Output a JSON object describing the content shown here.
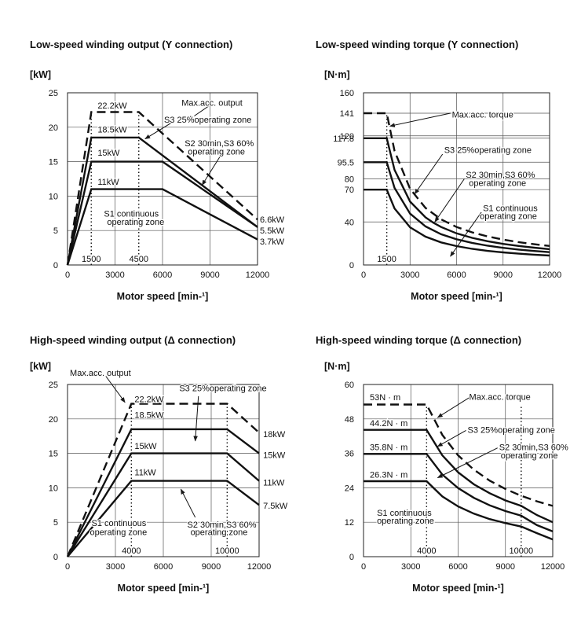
{
  "chart_data": [
    {
      "type": "line",
      "title": "Low-speed winding output (Y connection)",
      "unit_label": "[kW]",
      "xlabel": "Motor speed [min-¹]",
      "xlim": [
        0,
        12000
      ],
      "ylim": [
        0,
        25
      ],
      "x_ticks": [
        "0",
        "3000",
        "6000",
        "9000",
        "12000"
      ],
      "y_ticks": [
        "0",
        "5",
        "10",
        "15",
        "20",
        "25"
      ],
      "grid": true,
      "series": [
        {
          "style": "dashed",
          "x": [
            0,
            1500,
            4500,
            12000
          ],
          "y": [
            0,
            22.2,
            22.2,
            6.6
          ]
        },
        {
          "style": "solid",
          "x": [
            0,
            1500,
            4500,
            12000
          ],
          "y": [
            0,
            18.5,
            18.5,
            5.5
          ]
        },
        {
          "style": "solid",
          "x": [
            0,
            1500,
            6000,
            12000
          ],
          "y": [
            0,
            15,
            15,
            5.5
          ]
        },
        {
          "style": "solid",
          "x": [
            0,
            1500,
            6000,
            12000
          ],
          "y": [
            0,
            11,
            11,
            3.7
          ]
        }
      ],
      "guides": [
        {
          "x": 1500,
          "label": "1500"
        },
        {
          "x": 4500,
          "label": "4500"
        }
      ],
      "annotations": [
        {
          "text": "22.2kW",
          "x": 1900,
          "y": 23.2
        },
        {
          "text": "18.5kW",
          "x": 1900,
          "y": 19.7
        },
        {
          "text": "15kW",
          "x": 1900,
          "y": 16.3
        },
        {
          "text": "11kW",
          "x": 1900,
          "y": 12.1
        },
        {
          "text": "Max.acc. output",
          "x": 7200,
          "y": 23.6
        },
        {
          "text": "S3 25%operating zone",
          "x": 6100,
          "y": 21.1
        },
        {
          "text": "S2 30min,S3 60%",
          "x": 7400,
          "y": 17.7
        },
        {
          "text": "operating zone",
          "x": 7600,
          "y": 16.5
        },
        {
          "text": "S1 continuous",
          "x": 2300,
          "y": 7.5
        },
        {
          "text": "operating zone",
          "x": 2500,
          "y": 6.3
        },
        {
          "text": "6.6kW",
          "x": 12150,
          "y": 6.6
        },
        {
          "text": "5.5kW",
          "x": 12150,
          "y": 5.0
        },
        {
          "text": "3.7kW",
          "x": 12150,
          "y": 3.4
        }
      ],
      "arrows": [
        {
          "from": [
            9000,
            23.2
          ],
          "to": [
            7600,
            21
          ]
        },
        {
          "from": [
            9700,
            16.0
          ],
          "to": [
            8500,
            11.6
          ]
        },
        {
          "from": [
            6600,
            20.7
          ],
          "to": [
            4900,
            18.3
          ]
        }
      ]
    },
    {
      "type": "line",
      "title": "Low-speed winding torque (Y connection)",
      "unit_label": "[N·m]",
      "xlabel": "Motor speed [min-¹]",
      "xlim": [
        0,
        12000
      ],
      "ylim": [
        0,
        160
      ],
      "x_ticks": [
        "0",
        "3000",
        "6000",
        "9000",
        "12000"
      ],
      "y_ticks": [
        "0",
        "40",
        "70",
        "80",
        "95.5",
        "117.8",
        "120",
        "141",
        "160"
      ],
      "grid": true,
      "series": [
        {
          "style": "dashed",
          "x": [
            0,
            1500,
            2000,
            3000,
            4000,
            5000,
            6000,
            7000,
            8000,
            9000,
            10000,
            11000,
            12000
          ],
          "y": [
            141,
            141,
            106,
            70.7,
            53,
            42.4,
            35.3,
            30.3,
            26.5,
            23.6,
            21.2,
            19.3,
            17.7
          ]
        },
        {
          "style": "solid",
          "x": [
            0,
            1500,
            2000,
            3000,
            4000,
            4500,
            5000,
            6000,
            7000,
            8000,
            9000,
            10000,
            11000,
            12000
          ],
          "y": [
            117.8,
            117.8,
            88.4,
            58.9,
            44.2,
            39.3,
            35.3,
            29.4,
            25.2,
            22.1,
            19.6,
            17.7,
            16.1,
            14.7
          ]
        },
        {
          "style": "solid",
          "x": [
            0,
            1500,
            2000,
            3000,
            4000,
            5000,
            6000,
            7000,
            8000,
            9000,
            10000,
            11000,
            12000
          ],
          "y": [
            95.5,
            95.5,
            71.6,
            47.7,
            35.8,
            28.6,
            23.9,
            20.5,
            17.9,
            15.9,
            14.3,
            13.0,
            11.9
          ]
        },
        {
          "style": "solid",
          "x": [
            0,
            1500,
            2000,
            3000,
            4000,
            5000,
            6000,
            7000,
            8000,
            9000,
            10000,
            11000,
            12000
          ],
          "y": [
            70,
            70,
            52.5,
            35,
            26.3,
            21.0,
            17.5,
            15.0,
            13.1,
            11.7,
            10.5,
            9.6,
            8.8
          ]
        }
      ],
      "guides": [
        {
          "x": 1500,
          "label": "1500"
        }
      ],
      "annotations": [
        {
          "text": "Max.acc. torque",
          "x": 5700,
          "y": 140
        },
        {
          "text": "S3 25%operating zone",
          "x": 5200,
          "y": 107
        },
        {
          "text": "S2 30min,S3 60%",
          "x": 6600,
          "y": 84
        },
        {
          "text": "operating zone",
          "x": 6800,
          "y": 76.5
        },
        {
          "text": "S1 continuous",
          "x": 7700,
          "y": 53
        },
        {
          "text": "operating zone",
          "x": 7500,
          "y": 45.5
        }
      ],
      "arrows": [
        {
          "from": [
            5600,
            141
          ],
          "to": [
            1700,
            129
          ]
        },
        {
          "from": [
            5100,
            103
          ],
          "to": [
            3300,
            66
          ]
        },
        {
          "from": [
            6500,
            80
          ],
          "to": [
            4600,
            40
          ]
        },
        {
          "from": [
            7600,
            49
          ],
          "to": [
            5600,
            8
          ]
        }
      ]
    },
    {
      "type": "line",
      "title": "High-speed winding output (Δ connection)",
      "unit_label": "[kW]",
      "xlabel": "Motor speed [min-¹]",
      "xlim": [
        0,
        12000
      ],
      "ylim": [
        0,
        25
      ],
      "x_ticks": [
        "0",
        "3000",
        "6000",
        "9000",
        "12000"
      ],
      "y_ticks": [
        "0",
        "5",
        "10",
        "15",
        "20",
        "25"
      ],
      "grid": true,
      "series": [
        {
          "style": "dashed",
          "x": [
            0,
            4000,
            10000,
            12000
          ],
          "y": [
            0,
            22.2,
            22.2,
            18
          ]
        },
        {
          "style": "solid",
          "x": [
            0,
            4000,
            10000,
            12000
          ],
          "y": [
            0,
            18.5,
            18.5,
            15
          ]
        },
        {
          "style": "solid",
          "x": [
            0,
            4000,
            10000,
            12000
          ],
          "y": [
            0,
            15,
            15,
            11
          ]
        },
        {
          "style": "solid",
          "x": [
            0,
            4000,
            10000,
            12000
          ],
          "y": [
            0,
            11,
            11,
            7.5
          ]
        }
      ],
      "guides": [
        {
          "x": 4000,
          "label": "4000"
        },
        {
          "x": 10000,
          "label": "10000"
        }
      ],
      "annotations": [
        {
          "text": "22.2kW",
          "x": 4200,
          "y": 22.9
        },
        {
          "text": "18.5kW",
          "x": 4200,
          "y": 20.6
        },
        {
          "text": "15kW",
          "x": 4200,
          "y": 16.1
        },
        {
          "text": "11kW",
          "x": 4200,
          "y": 12.3
        },
        {
          "text": "Max.acc. output",
          "x": 150,
          "y": 26.7
        },
        {
          "text": "S3 25%operating zone",
          "x": 7000,
          "y": 24.5
        },
        {
          "text": "S2 30min,S3 60%",
          "x": 7500,
          "y": 4.7
        },
        {
          "text": "operating zone",
          "x": 7700,
          "y": 3.6
        },
        {
          "text": "S1 continuous",
          "x": 1500,
          "y": 4.9
        },
        {
          "text": "operating zone",
          "x": 1400,
          "y": 3.6
        },
        {
          "text": "18kW",
          "x": 12250,
          "y": 17.8
        },
        {
          "text": "15kW",
          "x": 12250,
          "y": 14.8
        },
        {
          "text": "11kW",
          "x": 12250,
          "y": 10.8
        },
        {
          "text": "7.5kW",
          "x": 12250,
          "y": 7.4
        }
      ],
      "arrows": [
        {
          "from": [
            2400,
            26.2
          ],
          "to": [
            3600,
            22.4
          ]
        },
        {
          "from": [
            8200,
            23.3
          ],
          "to": [
            8000,
            16.8
          ]
        },
        {
          "from": [
            8000,
            5.7
          ],
          "to": [
            7100,
            9.8
          ]
        }
      ]
    },
    {
      "type": "line",
      "title": "High-speed winding torque (Δ connection)",
      "unit_label": "[N·m]",
      "xlabel": "Motor speed [min-¹]",
      "xlim": [
        0,
        12000
      ],
      "ylim": [
        0,
        60
      ],
      "x_ticks": [
        "0",
        "3000",
        "6000",
        "9000",
        "12000"
      ],
      "y_ticks": [
        "0",
        "12",
        "24",
        "36",
        "48",
        "60"
      ],
      "grid": true,
      "series": [
        {
          "style": "dashed",
          "x": [
            0,
            4000,
            5000,
            6000,
            7000,
            8000,
            9000,
            10000,
            11000,
            12000
          ],
          "y": [
            53,
            53,
            42.4,
            35.3,
            30.3,
            26.5,
            23.6,
            21.2,
            19.3,
            17.7
          ]
        },
        {
          "style": "solid",
          "x": [
            0,
            4000,
            5000,
            6000,
            7000,
            8000,
            9000,
            10000,
            11000,
            12000
          ],
          "y": [
            44.2,
            44.2,
            35.3,
            29.4,
            25.2,
            22.1,
            19.6,
            17.7,
            14.5,
            12.0
          ]
        },
        {
          "style": "solid",
          "x": [
            0,
            4000,
            5000,
            6000,
            7000,
            8000,
            9000,
            10000,
            11000,
            12000
          ],
          "y": [
            35.8,
            35.8,
            28.6,
            23.9,
            20.5,
            17.9,
            15.9,
            14.3,
            11.0,
            8.8
          ]
        },
        {
          "style": "solid",
          "x": [
            0,
            4000,
            5000,
            6000,
            7000,
            8000,
            9000,
            10000,
            11000,
            12000
          ],
          "y": [
            26.3,
            26.3,
            21.0,
            17.5,
            15.0,
            13.1,
            11.7,
            10.5,
            8.2,
            6.0
          ]
        }
      ],
      "guides": [
        {
          "x": 4000,
          "label": "4000"
        },
        {
          "x": 10000,
          "label": "10000"
        }
      ],
      "annotations": [
        {
          "text": "53N · m",
          "x": 400,
          "y": 55.6
        },
        {
          "text": "44.2N · m",
          "x": 400,
          "y": 46.6
        },
        {
          "text": "35.8N · m",
          "x": 400,
          "y": 38.2
        },
        {
          "text": "26.3N · m",
          "x": 400,
          "y": 28.6
        },
        {
          "text": "Max.acc. torque",
          "x": 6700,
          "y": 55.8
        },
        {
          "text": "S3 25%operating zone",
          "x": 6600,
          "y": 44.3
        },
        {
          "text": "S2 30min,S3 60%",
          "x": 8600,
          "y": 38.2
        },
        {
          "text": "operating zone",
          "x": 8700,
          "y": 35.4
        },
        {
          "text": "S1 continuous",
          "x": 850,
          "y": 15.4
        },
        {
          "text": "operating zone",
          "x": 850,
          "y": 12.6
        }
      ],
      "arrows": [
        {
          "from": [
            6700,
            55.4
          ],
          "to": [
            4700,
            48.5
          ]
        },
        {
          "from": [
            6500,
            44.0
          ],
          "to": [
            4700,
            38.4
          ]
        },
        {
          "from": [
            8500,
            37.9
          ],
          "to": [
            4700,
            27.5
          ]
        }
      ]
    }
  ]
}
